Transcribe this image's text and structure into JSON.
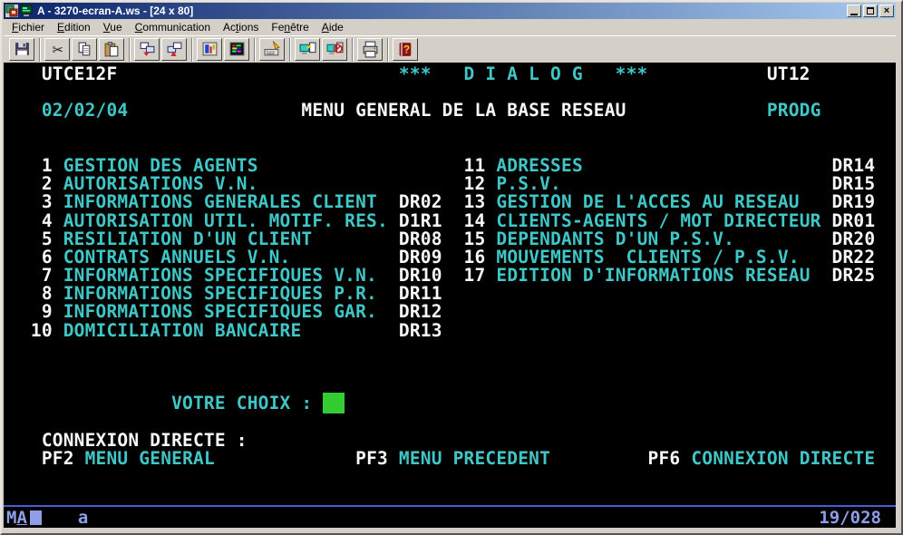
{
  "window": {
    "title": "A - 3270-ecran-A.ws - [24 x 80]",
    "controls": [
      "minimize",
      "restore",
      "close"
    ],
    "close_glyph": "×"
  },
  "colors": {
    "terminal_background": "#000000",
    "text_white": "#F8F8F8",
    "text_cyan": "#3FC6C6",
    "input_field_green": "#33CC33",
    "oia_blue": "#8E9EE8",
    "oia_separator": "#4B5BD0",
    "titlebar_gradient_left": "#0A246A",
    "titlebar_gradient_right": "#A6CAF0",
    "chrome_gray": "#D4D0C8"
  },
  "menu": {
    "items": [
      {
        "id": "fichier",
        "label": "Fichier",
        "accel": 0
      },
      {
        "id": "edition",
        "label": "Edition",
        "accel": 0
      },
      {
        "id": "vue",
        "label": "Vue",
        "accel": 0
      },
      {
        "id": "communication",
        "label": "Communication",
        "accel": 0
      },
      {
        "id": "actions",
        "label": "Actions",
        "accel": 2
      },
      {
        "id": "fenetre",
        "label": "Fenêtre",
        "accel": 2
      },
      {
        "id": "aide",
        "label": "Aide",
        "accel": 0
      }
    ]
  },
  "toolbar": {
    "groups": [
      [
        "save"
      ],
      [
        "cut",
        "copy",
        "paste"
      ],
      [
        "receive-file",
        "send-file"
      ],
      [
        "display-setup",
        "color-setup"
      ],
      [
        "keyboard-setup"
      ],
      [
        "connect-session",
        "disconnect-session"
      ],
      [
        "print"
      ],
      [
        "help"
      ]
    ]
  },
  "terminal": {
    "header": {
      "terminal_id": "UTCE12F",
      "banner": "***   D I A L O G   ***",
      "system_id": "UT12",
      "date": "02/02/04",
      "screen_title": "MENU GENERAL DE LA BASE RESEAU",
      "environment": "PRODG"
    },
    "prompt_label": "VOTRE CHOIX :",
    "footer_label": "CONNEXION DIRECTE :",
    "function_keys": [
      {
        "key": "PF2",
        "label": "MENU GENERAL"
      },
      {
        "key": "PF3",
        "label": "MENU PRECEDENT"
      },
      {
        "key": "PF6",
        "label": "CONNEXION DIRECTE"
      }
    ],
    "menu_items_left": [
      {
        "num": "1",
        "label": "GESTION DES AGENTS",
        "code": ""
      },
      {
        "num": "2",
        "label": "AUTORISATIONS V.N.",
        "code": ""
      },
      {
        "num": "3",
        "label": "INFORMATIONS GENERALES CLIENT",
        "code": "DR02"
      },
      {
        "num": "4",
        "label": "AUTORISATION UTIL. MOTIF. RES.",
        "code": "D1R1"
      },
      {
        "num": "5",
        "label": "RESILIATION D'UN CLIENT",
        "code": "DR08"
      },
      {
        "num": "6",
        "label": "CONTRATS ANNUELS V.N.",
        "code": "DR09"
      },
      {
        "num": "7",
        "label": "INFORMATIONS SPECIFIQUES V.N.",
        "code": "DR10"
      },
      {
        "num": "8",
        "label": "INFORMATIONS SPECIFIQUES P.R.",
        "code": "DR11"
      },
      {
        "num": "9",
        "label": "INFORMATIONS SPECIFIQUES GAR.",
        "code": "DR12"
      },
      {
        "num": "10",
        "label": "DOMICILIATION BANCAIRE",
        "code": "DR13"
      }
    ],
    "menu_items_right": [
      {
        "num": "11",
        "label": "ADRESSES",
        "code": "DR14"
      },
      {
        "num": "12",
        "label": "P.S.V.",
        "code": "DR15"
      },
      {
        "num": "13",
        "label": "GESTION DE L'ACCES AU RESEAU",
        "code": "DR19"
      },
      {
        "num": "14",
        "label": "CLIENTS-AGENTS / MOT DIRECTEUR",
        "code": "DR01"
      },
      {
        "num": "15",
        "label": "DEPENDANTS D'UN P.S.V.",
        "code": "DR20"
      },
      {
        "num": "16",
        "label": "MOUVEMENTS  CLIENTS / P.S.V.",
        "code": "DR22"
      },
      {
        "num": "17",
        "label": "EDITION D'INFORMATIONS RESEAU",
        "code": "DR25"
      }
    ]
  },
  "screen": {
    "rows": [
      {
        "segments": [
          {
            "t": "   "
          },
          {
            "t": "UTCE12F",
            "c": "w"
          },
          {
            "t": "                          "
          },
          {
            "t": "***   D I A L O G   ***",
            "c": "cy"
          },
          {
            "t": "           "
          },
          {
            "t": "UT12",
            "c": "w"
          }
        ]
      },
      {
        "segments": []
      },
      {
        "segments": [
          {
            "t": "   "
          },
          {
            "t": "02/02/04",
            "c": "cy"
          },
          {
            "t": "                "
          },
          {
            "t": "MENU GENERAL DE LA BASE RESEAU",
            "c": "w"
          },
          {
            "t": "             "
          },
          {
            "t": "PRODG",
            "c": "cy"
          }
        ]
      },
      {
        "segments": []
      },
      {
        "segments": []
      },
      {
        "segments": [
          {
            "t": "   1",
            "c": "w"
          },
          {
            "t": " "
          },
          {
            "t": "GESTION DES AGENTS",
            "c": "cy"
          },
          {
            "t": "                   "
          },
          {
            "t": "11",
            "c": "w"
          },
          {
            "t": " "
          },
          {
            "t": "ADRESSES",
            "c": "cy"
          },
          {
            "t": "                       "
          },
          {
            "t": "DR14",
            "c": "w"
          }
        ]
      },
      {
        "segments": [
          {
            "t": "   2",
            "c": "w"
          },
          {
            "t": " "
          },
          {
            "t": "AUTORISATIONS V.N.",
            "c": "cy"
          },
          {
            "t": "                   "
          },
          {
            "t": "12",
            "c": "w"
          },
          {
            "t": " "
          },
          {
            "t": "P.S.V.",
            "c": "cy"
          },
          {
            "t": "                         "
          },
          {
            "t": "DR15",
            "c": "w"
          }
        ]
      },
      {
        "segments": [
          {
            "t": "   3",
            "c": "w"
          },
          {
            "t": " "
          },
          {
            "t": "INFORMATIONS GENERALES CLIENT",
            "c": "cy"
          },
          {
            "t": "  "
          },
          {
            "t": "DR02",
            "c": "w"
          },
          {
            "t": "  "
          },
          {
            "t": "13",
            "c": "w"
          },
          {
            "t": " "
          },
          {
            "t": "GESTION DE L'ACCES AU RESEAU",
            "c": "cy"
          },
          {
            "t": "   "
          },
          {
            "t": "DR19",
            "c": "w"
          }
        ]
      },
      {
        "segments": [
          {
            "t": "   4",
            "c": "w"
          },
          {
            "t": " "
          },
          {
            "t": "AUTORISATION UTIL. MOTIF. RES.",
            "c": "cy"
          },
          {
            "t": " "
          },
          {
            "t": "D1R1",
            "c": "w"
          },
          {
            "t": "  "
          },
          {
            "t": "14",
            "c": "w"
          },
          {
            "t": " "
          },
          {
            "t": "CLIENTS-AGENTS / MOT DIRECTEUR",
            "c": "cy"
          },
          {
            "t": " "
          },
          {
            "t": "DR01",
            "c": "w"
          }
        ]
      },
      {
        "segments": [
          {
            "t": "   5",
            "c": "w"
          },
          {
            "t": " "
          },
          {
            "t": "RESILIATION D'UN CLIENT",
            "c": "cy"
          },
          {
            "t": "        "
          },
          {
            "t": "DR08",
            "c": "w"
          },
          {
            "t": "  "
          },
          {
            "t": "15",
            "c": "w"
          },
          {
            "t": " "
          },
          {
            "t": "DEPENDANTS D'UN P.S.V.",
            "c": "cy"
          },
          {
            "t": "         "
          },
          {
            "t": "DR20",
            "c": "w"
          }
        ]
      },
      {
        "segments": [
          {
            "t": "   6",
            "c": "w"
          },
          {
            "t": " "
          },
          {
            "t": "CONTRATS ANNUELS V.N.",
            "c": "cy"
          },
          {
            "t": "          "
          },
          {
            "t": "DR09",
            "c": "w"
          },
          {
            "t": "  "
          },
          {
            "t": "16",
            "c": "w"
          },
          {
            "t": " "
          },
          {
            "t": "MOUVEMENTS  CLIENTS / P.S.V.",
            "c": "cy"
          },
          {
            "t": "   "
          },
          {
            "t": "DR22",
            "c": "w"
          }
        ]
      },
      {
        "segments": [
          {
            "t": "   7",
            "c": "w"
          },
          {
            "t": " "
          },
          {
            "t": "INFORMATIONS SPECIFIQUES V.N.",
            "c": "cy"
          },
          {
            "t": "  "
          },
          {
            "t": "DR10",
            "c": "w"
          },
          {
            "t": "  "
          },
          {
            "t": "17",
            "c": "w"
          },
          {
            "t": " "
          },
          {
            "t": "EDITION D'INFORMATIONS RESEAU",
            "c": "cy"
          },
          {
            "t": "  "
          },
          {
            "t": "DR25",
            "c": "w"
          }
        ]
      },
      {
        "segments": [
          {
            "t": "   8",
            "c": "w"
          },
          {
            "t": " "
          },
          {
            "t": "INFORMATIONS SPECIFIQUES P.R.",
            "c": "cy"
          },
          {
            "t": "  "
          },
          {
            "t": "DR11",
            "c": "w"
          }
        ]
      },
      {
        "segments": [
          {
            "t": "   9",
            "c": "w"
          },
          {
            "t": " "
          },
          {
            "t": "INFORMATIONS SPECIFIQUES GAR.",
            "c": "cy"
          },
          {
            "t": "  "
          },
          {
            "t": "DR12",
            "c": "w"
          }
        ]
      },
      {
        "segments": [
          {
            "t": "  10",
            "c": "w"
          },
          {
            "t": " "
          },
          {
            "t": "DOMICILIATION BANCAIRE",
            "c": "cy"
          },
          {
            "t": "         "
          },
          {
            "t": "DR13",
            "c": "w"
          }
        ]
      },
      {
        "segments": []
      },
      {
        "segments": []
      },
      {
        "segments": []
      },
      {
        "segments": [
          {
            "t": "               "
          },
          {
            "t": "VOTRE CHOIX :",
            "c": "cy"
          },
          {
            "t": " "
          },
          {
            "t": "  ",
            "c": "gf",
            "name": "choice-input-field",
            "interactable": true
          }
        ]
      },
      {
        "segments": []
      },
      {
        "segments": [
          {
            "t": "   "
          },
          {
            "t": "CONNEXION DIRECTE :",
            "c": "w"
          }
        ]
      },
      {
        "segments": [
          {
            "t": "   "
          },
          {
            "t": "PF2",
            "c": "w"
          },
          {
            "t": " "
          },
          {
            "t": "MENU GENERAL",
            "c": "cy"
          },
          {
            "t": "             "
          },
          {
            "t": "PF3",
            "c": "w"
          },
          {
            "t": " "
          },
          {
            "t": "MENU PRECEDENT",
            "c": "cy"
          },
          {
            "t": "         "
          },
          {
            "t": "PF6",
            "c": "w"
          },
          {
            "t": " "
          },
          {
            "t": "CONNEXION DIRECTE",
            "c": "cy"
          }
        ]
      },
      {
        "segments": []
      },
      {
        "segments": []
      }
    ]
  },
  "oia": {
    "system_flag": "M",
    "session_id": "A",
    "host_indicator": "a",
    "cursor_position": "19/028"
  }
}
